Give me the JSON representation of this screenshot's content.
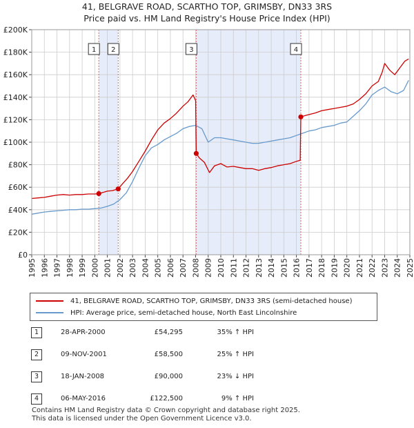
{
  "title_line1": "41, BELGRAVE ROAD, SCARTHO TOP, GRIMSBY, DN33 3RS",
  "title_line2": "Price paid vs. HM Land Registry's House Price Index (HPI)",
  "chart_data": {
    "type": "line",
    "ylim": [
      0,
      200000
    ],
    "xlim": [
      1995.0,
      2025.0
    ],
    "y_ticks": [
      0,
      20000,
      40000,
      60000,
      80000,
      100000,
      120000,
      140000,
      160000,
      180000,
      200000
    ],
    "y_tick_labels": [
      "£0",
      "£20K",
      "£40K",
      "£60K",
      "£80K",
      "£100K",
      "£120K",
      "£140K",
      "£160K",
      "£180K",
      "£200K"
    ],
    "x_ticks": [
      1995,
      1996,
      1997,
      1998,
      1999,
      2000,
      2001,
      2002,
      2003,
      2004,
      2005,
      2006,
      2007,
      2008,
      2009,
      2010,
      2011,
      2012,
      2013,
      2014,
      2015,
      2016,
      2017,
      2018,
      2019,
      2020,
      2021,
      2022,
      2023,
      2024,
      2025
    ],
    "x_tick_labels": [
      "1995",
      "1996",
      "1997",
      "1998",
      "1999",
      "2000",
      "2001",
      "2002",
      "2003",
      "2004",
      "2005",
      "2006",
      "2007",
      "2008",
      "2009",
      "2010",
      "2011",
      "2012",
      "2013",
      "2014",
      "2015",
      "2016",
      "2017",
      "2018",
      "2019",
      "2020",
      "2021",
      "2022",
      "2023",
      "2024",
      "2025"
    ],
    "grid": true,
    "series": [
      {
        "name": "41, BELGRAVE ROAD, SCARTHO TOP, GRIMSBY, DN33 3RS (semi-detached house)",
        "color": "#cc0000",
        "x": [
          1995.0,
          1995.5,
          1996.0,
          1996.5,
          1997.0,
          1997.5,
          1998.0,
          1998.5,
          1999.0,
          1999.5,
          2000.0,
          2000.32,
          2000.7,
          2001.0,
          2001.4,
          2001.86,
          2002.2,
          2002.6,
          2003.0,
          2003.5,
          2004.0,
          2004.5,
          2005.0,
          2005.5,
          2006.0,
          2006.5,
          2007.0,
          2007.4,
          2007.8,
          2008.0,
          2008.05,
          2008.3,
          2008.7,
          2009.1,
          2009.5,
          2010.0,
          2010.5,
          2011.0,
          2011.5,
          2012.0,
          2012.5,
          2013.0,
          2013.5,
          2014.0,
          2014.5,
          2015.0,
          2015.5,
          2016.0,
          2016.3,
          2016.35,
          2016.8,
          2017.5,
          2018.0,
          2018.5,
          2019.0,
          2019.5,
          2020.0,
          2020.5,
          2021.0,
          2021.5,
          2022.0,
          2022.5,
          2022.8,
          2023.0,
          2023.4,
          2023.8,
          2024.2,
          2024.6,
          2024.9
        ],
        "values": [
          50000,
          50500,
          51000,
          52000,
          53000,
          53500,
          53000,
          53500,
          53500,
          54000,
          54000,
          54295,
          55500,
          56500,
          57000,
          58500,
          63000,
          68000,
          74000,
          83000,
          92000,
          102000,
          111000,
          117000,
          121000,
          126000,
          132000,
          136000,
          142000,
          137000,
          90000,
          86000,
          82000,
          73000,
          79000,
          81000,
          78000,
          78500,
          77500,
          76500,
          76500,
          75000,
          76500,
          77500,
          79000,
          80000,
          81000,
          83000,
          84000,
          122500,
          124000,
          126000,
          128000,
          129000,
          130000,
          131000,
          132000,
          134000,
          138000,
          143000,
          150000,
          154000,
          162000,
          170000,
          164000,
          160000,
          166000,
          172000,
          174000
        ]
      },
      {
        "name": "HPI: Average price, semi-detached house, North East Lincolnshire",
        "color": "#6699cc",
        "x": [
          1995.0,
          1995.5,
          1996.0,
          1996.5,
          1997.0,
          1997.5,
          1998.0,
          1998.5,
          1999.0,
          1999.5,
          2000.0,
          2000.5,
          2001.0,
          2001.5,
          2002.0,
          2002.5,
          2003.0,
          2003.5,
          2004.0,
          2004.5,
          2005.0,
          2005.5,
          2006.0,
          2006.5,
          2007.0,
          2007.5,
          2008.0,
          2008.5,
          2009.0,
          2009.5,
          2010.0,
          2010.5,
          2011.0,
          2011.5,
          2012.0,
          2012.5,
          2013.0,
          2013.5,
          2014.0,
          2014.5,
          2015.0,
          2015.5,
          2016.0,
          2016.5,
          2017.0,
          2017.5,
          2018.0,
          2018.5,
          2019.0,
          2019.5,
          2020.0,
          2020.5,
          2021.0,
          2021.5,
          2022.0,
          2022.5,
          2023.0,
          2023.5,
          2024.0,
          2024.5,
          2024.9
        ],
        "values": [
          36000,
          37000,
          38000,
          38500,
          39000,
          39500,
          40000,
          40000,
          40500,
          40500,
          41000,
          41500,
          43000,
          45000,
          49000,
          55000,
          65000,
          77000,
          88000,
          95000,
          98000,
          102000,
          105000,
          108000,
          112000,
          114000,
          115000,
          112000,
          100000,
          104000,
          104000,
          103000,
          102000,
          101000,
          100000,
          99000,
          99000,
          100000,
          101000,
          102000,
          103000,
          104000,
          106000,
          108000,
          110000,
          111000,
          113000,
          114000,
          115000,
          117000,
          118000,
          123000,
          128000,
          134000,
          142000,
          146000,
          149000,
          145000,
          143000,
          146000,
          155000
        ]
      }
    ],
    "sales": [
      {
        "n": "1",
        "x": 2000.32,
        "price": 54295
      },
      {
        "n": "2",
        "x": 2001.86,
        "price": 58500
      },
      {
        "n": "3",
        "x": 2008.05,
        "price": 90000
      },
      {
        "n": "4",
        "x": 2016.35,
        "price": 122500
      }
    ]
  },
  "legend": {
    "red_label": "41, BELGRAVE ROAD, SCARTHO TOP, GRIMSBY, DN33 3RS (semi-detached house)",
    "blue_label": "HPI: Average price, semi-detached house, North East Lincolnshire"
  },
  "transactions": [
    {
      "n": "1",
      "date": "28-APR-2000",
      "price": "£54,295",
      "hpi": "35% ↑ HPI"
    },
    {
      "n": "2",
      "date": "09-NOV-2001",
      "price": "£58,500",
      "hpi": "25% ↑ HPI"
    },
    {
      "n": "3",
      "date": "18-JAN-2008",
      "price": "£90,000",
      "hpi": "23% ↓ HPI"
    },
    {
      "n": "4",
      "date": "06-MAY-2016",
      "price": "£122,500",
      "hpi": "9% ↑ HPI"
    }
  ],
  "footer": {
    "line1": "Contains HM Land Registry data © Crown copyright and database right 2025.",
    "line2": "This data is licensed under the Open Government Licence v3.0."
  },
  "colors": {
    "red": "#cc0000",
    "blue": "#6699cc",
    "shade": "#dde6f7",
    "grid": "#cccccc"
  }
}
